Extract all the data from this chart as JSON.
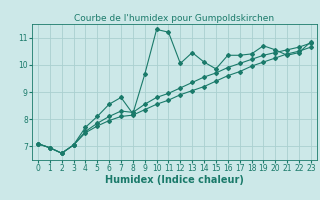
{
  "title": "Courbe de l'humidex pour Gumpoldskirchen",
  "xlabel": "Humidex (Indice chaleur)",
  "ylabel": "",
  "bg_color": "#cce8e8",
  "line_color": "#1a7a6a",
  "xlim": [
    -0.5,
    23.5
  ],
  "ylim": [
    6.5,
    11.5
  ],
  "xticks": [
    0,
    1,
    2,
    3,
    4,
    5,
    6,
    7,
    8,
    9,
    10,
    11,
    12,
    13,
    14,
    15,
    16,
    17,
    18,
    19,
    20,
    21,
    22,
    23
  ],
  "yticks": [
    7,
    8,
    9,
    10,
    11
  ],
  "series1_x": [
    0,
    1,
    2,
    3,
    4,
    5,
    6,
    7,
    8,
    9,
    10,
    11,
    12,
    13,
    14,
    15,
    16,
    17,
    18,
    19,
    20,
    21,
    22,
    23
  ],
  "series1_y": [
    7.1,
    6.95,
    6.75,
    7.05,
    7.7,
    8.1,
    8.55,
    8.8,
    8.2,
    9.65,
    11.3,
    11.2,
    10.05,
    10.45,
    10.1,
    9.85,
    10.35,
    10.35,
    10.4,
    10.7,
    10.55,
    10.35,
    10.45,
    10.85
  ],
  "series2_x": [
    0,
    1,
    2,
    3,
    4,
    5,
    6,
    7,
    8,
    9,
    10,
    11,
    12,
    13,
    14,
    15,
    16,
    17,
    18,
    19,
    20,
    21,
    22,
    23
  ],
  "series2_y": [
    7.1,
    6.95,
    6.75,
    7.05,
    7.55,
    7.85,
    8.1,
    8.3,
    8.25,
    8.55,
    8.8,
    8.95,
    9.15,
    9.35,
    9.55,
    9.7,
    9.9,
    10.05,
    10.2,
    10.35,
    10.45,
    10.55,
    10.65,
    10.8
  ],
  "series3_x": [
    0,
    1,
    2,
    3,
    4,
    5,
    6,
    7,
    8,
    9,
    10,
    11,
    12,
    13,
    14,
    15,
    16,
    17,
    18,
    19,
    20,
    21,
    22,
    23
  ],
  "series3_y": [
    7.1,
    6.95,
    6.75,
    7.05,
    7.5,
    7.75,
    7.95,
    8.1,
    8.15,
    8.35,
    8.55,
    8.7,
    8.9,
    9.05,
    9.2,
    9.4,
    9.6,
    9.75,
    9.95,
    10.1,
    10.25,
    10.4,
    10.5,
    10.65
  ],
  "grid_color": "#aad0d0",
  "title_fontsize": 6.5,
  "label_fontsize": 7,
  "tick_fontsize": 5.5
}
